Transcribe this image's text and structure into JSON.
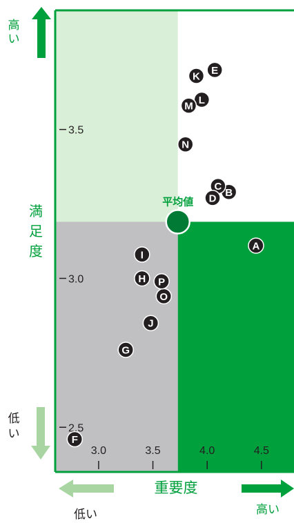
{
  "chart_data": {
    "type": "scatter",
    "title": "",
    "xlabel": "重要度",
    "ylabel": "満足度",
    "x_ticks": [
      "3.0",
      "3.5",
      "4.0",
      "4.5"
    ],
    "y_ticks": [
      "3.5",
      "3.0",
      "2.5"
    ],
    "xlim": [
      2.6,
      4.8
    ],
    "ylim": [
      2.35,
      3.9
    ],
    "average": {
      "label": "平均値",
      "x": 3.73,
      "y": 3.19
    },
    "y_high_label": "高い",
    "y_low_label": "低い",
    "x_low_label": "低い",
    "x_high_label": "高い",
    "points": [
      {
        "label": "A",
        "x": 4.45,
        "y": 3.11
      },
      {
        "label": "B",
        "x": 4.2,
        "y": 3.29
      },
      {
        "label": "C",
        "x": 4.1,
        "y": 3.31
      },
      {
        "label": "D",
        "x": 4.05,
        "y": 3.27
      },
      {
        "label": "E",
        "x": 4.07,
        "y": 3.7
      },
      {
        "label": "F",
        "x": 2.78,
        "y": 2.46
      },
      {
        "label": "G",
        "x": 3.25,
        "y": 2.76
      },
      {
        "label": "H",
        "x": 3.4,
        "y": 3.0
      },
      {
        "label": "I",
        "x": 3.4,
        "y": 3.08
      },
      {
        "label": "J",
        "x": 3.48,
        "y": 2.85
      },
      {
        "label": "K",
        "x": 3.9,
        "y": 3.68
      },
      {
        "label": "L",
        "x": 3.95,
        "y": 3.6
      },
      {
        "label": "M",
        "x": 3.83,
        "y": 3.58
      },
      {
        "label": "N",
        "x": 3.8,
        "y": 3.45
      },
      {
        "label": "O",
        "x": 3.6,
        "y": 2.94
      },
      {
        "label": "P",
        "x": 3.58,
        "y": 2.99
      }
    ],
    "colors": {
      "green": "#00a03c",
      "light_green": "#d9efd8",
      "gray": "#c0c0c3",
      "pale_green_arrow": "#a8d5a2",
      "dark_marker": "#231f20",
      "average_marker": "#007a35"
    },
    "legend": "none",
    "grid": false
  }
}
